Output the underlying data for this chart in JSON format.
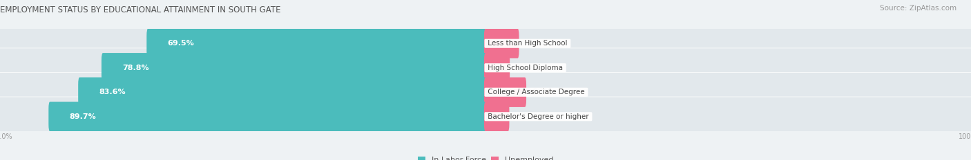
{
  "title": "EMPLOYMENT STATUS BY EDUCATIONAL ATTAINMENT IN SOUTH GATE",
  "source": "Source: ZipAtlas.com",
  "categories": [
    "Less than High School",
    "High School Diploma",
    "College / Associate Degree",
    "Bachelor's Degree or higher"
  ],
  "in_labor_force": [
    69.5,
    78.8,
    83.6,
    89.7
  ],
  "unemployed": [
    6.6,
    4.7,
    8.1,
    4.6
  ],
  "color_labor": "#4BBCBC",
  "color_unemployed": "#F07090",
  "color_labor_light": "#C8E8E8",
  "color_unemployed_light": "#F8C8D4",
  "bar_height": 0.62,
  "background_color": "#EEF2F4",
  "bar_background": "#E2E8EC",
  "title_fontsize": 8.5,
  "value_fontsize": 8,
  "cat_fontsize": 7.5,
  "axis_label_fontsize": 7,
  "legend_fontsize": 8
}
